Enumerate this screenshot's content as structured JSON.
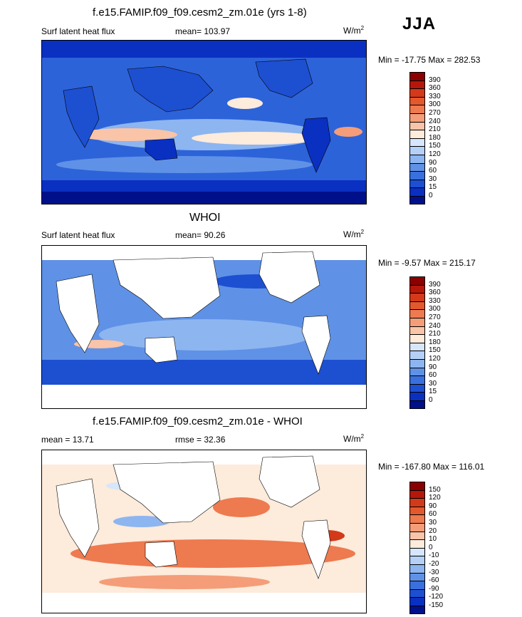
{
  "season": "JJA",
  "panels": [
    {
      "title": "f.e15.FAMIP.f09_f09.cesm2_zm.01e (yrs 1-8)",
      "variable": "Surf latent heat flux",
      "stat_text": "mean= 103.97",
      "units": "W/m",
      "units_sup": "2",
      "minmax": "Min = -17.75 Max = 282.53",
      "colorbar_labels": [
        "390",
        "360",
        "330",
        "300",
        "270",
        "240",
        "210",
        "180",
        "150",
        "120",
        "90",
        "60",
        "30",
        "15",
        "0"
      ],
      "colorbar_colors": [
        "#8b0000",
        "#b5170b",
        "#d23a1a",
        "#e4582e",
        "#ee7a4f",
        "#f49d78",
        "#f9c4a8",
        "#fdebdb",
        "#d6e6fb",
        "#b5d0f7",
        "#8db5f0",
        "#5f92e6",
        "#3a70dd",
        "#1d4fd1",
        "#0a30c2",
        "#00108a"
      ]
    },
    {
      "title": "WHOI",
      "variable": "Surf latent heat flux",
      "stat_text": "mean=  90.26",
      "units": "W/m",
      "units_sup": "2",
      "minmax": "Min =  -9.57 Max = 215.17",
      "colorbar_labels": [
        "390",
        "360",
        "330",
        "300",
        "270",
        "240",
        "210",
        "180",
        "150",
        "120",
        "90",
        "60",
        "30",
        "15",
        "0"
      ],
      "colorbar_colors": [
        "#8b0000",
        "#b5170b",
        "#d23a1a",
        "#e4582e",
        "#ee7a4f",
        "#f49d78",
        "#f9c4a8",
        "#fdebdb",
        "#d6e6fb",
        "#b5d0f7",
        "#8db5f0",
        "#5f92e6",
        "#3a70dd",
        "#1d4fd1",
        "#0a30c2",
        "#00108a"
      ]
    },
    {
      "title": "f.e15.FAMIP.f09_f09.cesm2_zm.01e - WHOI",
      "variable": "mean =  13.71",
      "stat_text": "rmse =  32.36",
      "units": "W/m",
      "units_sup": "2",
      "minmax": "Min = -167.80 Max = 116.01",
      "colorbar_labels": [
        "150",
        "120",
        "90",
        "60",
        "30",
        "20",
        "10",
        "0",
        "-10",
        "-20",
        "-30",
        "-60",
        "-90",
        "-120",
        "-150"
      ],
      "colorbar_colors": [
        "#8b0000",
        "#b5170b",
        "#d23a1a",
        "#e4582e",
        "#ee7a4f",
        "#f49d78",
        "#f9c4a8",
        "#fdebdb",
        "#d6e6fb",
        "#b5d0f7",
        "#8db5f0",
        "#5f92e6",
        "#3a70dd",
        "#1d4fd1",
        "#0a30c2",
        "#00108a"
      ]
    }
  ]
}
